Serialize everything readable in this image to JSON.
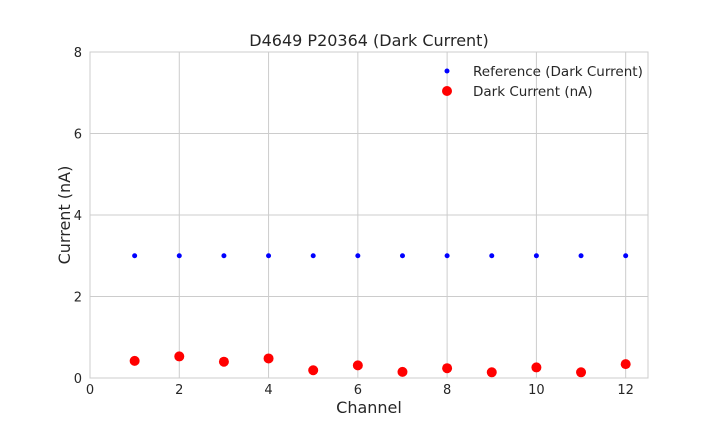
{
  "chart_data": {
    "type": "scatter",
    "title": "D4649 P20364 (Dark Current)",
    "xlabel": "Channel",
    "ylabel": "Current (nA)",
    "xlim": [
      0,
      12.5
    ],
    "ylim": [
      0,
      8
    ],
    "xticks": [
      0,
      2,
      4,
      6,
      8,
      10,
      12
    ],
    "yticks": [
      0,
      2,
      4,
      6,
      8
    ],
    "grid": true,
    "legend_position": "top-right",
    "x": [
      1,
      2,
      3,
      4,
      5,
      6,
      7,
      8,
      9,
      10,
      11,
      12
    ],
    "series": [
      {
        "name": "Reference (Dark Current)",
        "color": "#0000ff",
        "size": "small",
        "values": [
          3,
          3,
          3,
          3,
          3,
          3,
          3,
          3,
          3,
          3,
          3,
          3
        ]
      },
      {
        "name": "Dark Current (nA)",
        "color": "#ff0000",
        "size": "large",
        "values": [
          0.42,
          0.53,
          0.4,
          0.48,
          0.19,
          0.31,
          0.15,
          0.24,
          0.14,
          0.26,
          0.14,
          0.34
        ]
      }
    ]
  }
}
